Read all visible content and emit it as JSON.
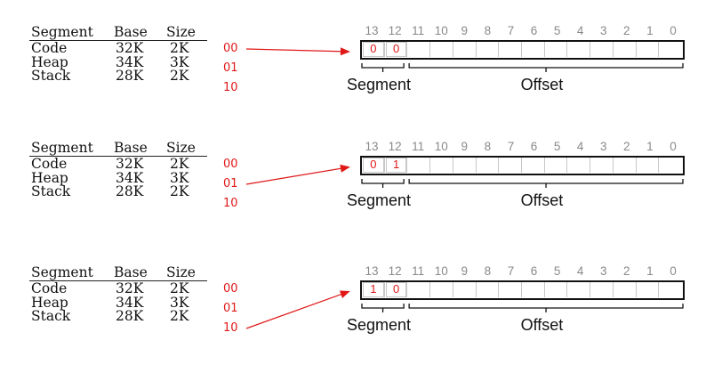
{
  "table": {
    "headers": [
      "Segment",
      "Base",
      "Size"
    ],
    "rows": [
      [
        "Code",
        "32K",
        "2K"
      ],
      [
        "Heap",
        "34K",
        "3K"
      ],
      [
        "Stack",
        "28K",
        "2K"
      ]
    ]
  },
  "segment_codes": [
    "00",
    "01",
    "10"
  ],
  "bit_numbers": [
    "13",
    "12",
    "11",
    "10",
    "9",
    "8",
    "7",
    "6",
    "5",
    "4",
    "3",
    "2",
    "1",
    "0"
  ],
  "field_labels": {
    "segment": "Segment",
    "offset": "Offset"
  },
  "panels": [
    {
      "arrow_from_row": 0,
      "segment_bits": [
        "0",
        "0"
      ]
    },
    {
      "arrow_from_row": 1,
      "segment_bits": [
        "0",
        "1"
      ]
    },
    {
      "arrow_from_row": 2,
      "segment_bits": [
        "1",
        "0"
      ]
    }
  ],
  "colors": {
    "accent": "#e01818",
    "text": "#111111",
    "bit_number": "#8a8a8a",
    "cell_divider": "#c8c8c8"
  }
}
